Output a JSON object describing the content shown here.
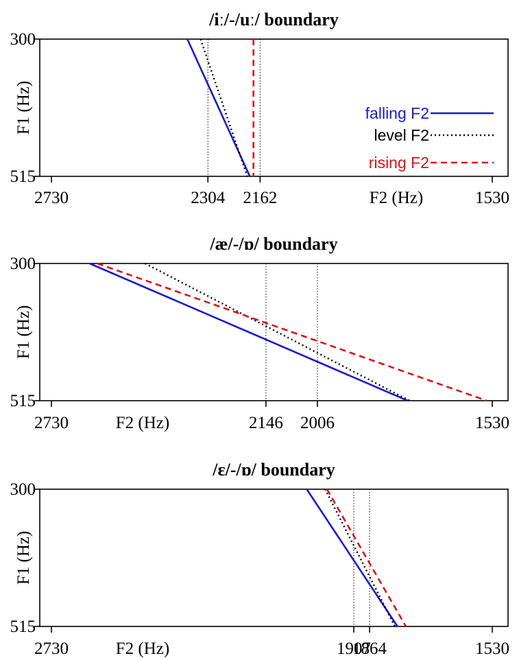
{
  "colors": {
    "falling": "#1a1acc",
    "level": "#000000",
    "rising": "#dd1111"
  },
  "legend": {
    "falling": "falling F2",
    "level": "level F2",
    "rising": "rising F2"
  },
  "chart_data": [
    {
      "type": "line",
      "title": "/iː/-/uː/ boundary",
      "xlabel": "F2 (Hz)",
      "ylabel": "F1 (Hz)",
      "x_reversed": true,
      "xlim": [
        2730,
        1530
      ],
      "ylim": [
        300,
        515
      ],
      "ticks_x": [
        "2730",
        "2304",
        "2162",
        "1530"
      ],
      "ticks_y": [
        "300",
        "515"
      ],
      "legend": "right",
      "series": [
        {
          "name": "falling F2",
          "style": "solid",
          "points": [
            [
              2360,
              300
            ],
            [
              2190,
              515
            ]
          ]
        },
        {
          "name": "level F2",
          "style": "dotted",
          "points": [
            [
              2324,
              300
            ],
            [
              2197,
              515
            ]
          ]
        },
        {
          "name": "rising F2",
          "style": "dashed",
          "points": [
            [
              2180,
              300
            ],
            [
              2180,
              515
            ]
          ]
        }
      ],
      "vlines": [
        2304,
        2162
      ]
    },
    {
      "type": "line",
      "title": "/æ/-/ɒ/ boundary",
      "xlabel": "F2 (Hz)",
      "ylabel": "F1 (Hz)",
      "x_reversed": true,
      "xlim": [
        2730,
        1530
      ],
      "ylim": [
        300,
        515
      ],
      "ticks_x": [
        "2730",
        "2146",
        "2006",
        "1530"
      ],
      "ticks_y": [
        "300",
        "515"
      ],
      "series": [
        {
          "name": "falling F2",
          "style": "solid",
          "points": [
            [
              2626,
              300
            ],
            [
              1760,
              515
            ]
          ]
        },
        {
          "name": "level F2",
          "style": "dotted",
          "points": [
            [
              2475,
              300
            ],
            [
              1755,
              515
            ]
          ]
        },
        {
          "name": "rising F2",
          "style": "dashed",
          "points": [
            [
              2605,
              300
            ],
            [
              1545,
              515
            ]
          ]
        }
      ],
      "vlines": [
        2146,
        2006
      ]
    },
    {
      "type": "line",
      "title": "/ɛ/-/ɒ/ boundary",
      "xlabel": "F2 (Hz)",
      "ylabel": "F1 (Hz)",
      "x_reversed": true,
      "xlim": [
        2730,
        1530
      ],
      "ylim": [
        300,
        515
      ],
      "ticks_x": [
        "2730",
        "1907",
        "1864",
        "1530"
      ],
      "ticks_y": [
        "300",
        "515"
      ],
      "series": [
        {
          "name": "falling F2",
          "style": "solid",
          "points": [
            [
              2035,
              300
            ],
            [
              1788,
              515
            ]
          ]
        },
        {
          "name": "level F2",
          "style": "dotted",
          "points": [
            [
              1985,
              300
            ],
            [
              1795,
              515
            ]
          ]
        },
        {
          "name": "rising F2",
          "style": "dashed",
          "points": [
            [
              1980,
              300
            ],
            [
              1765,
              515
            ]
          ]
        }
      ],
      "vlines": [
        1907,
        1864
      ]
    }
  ]
}
